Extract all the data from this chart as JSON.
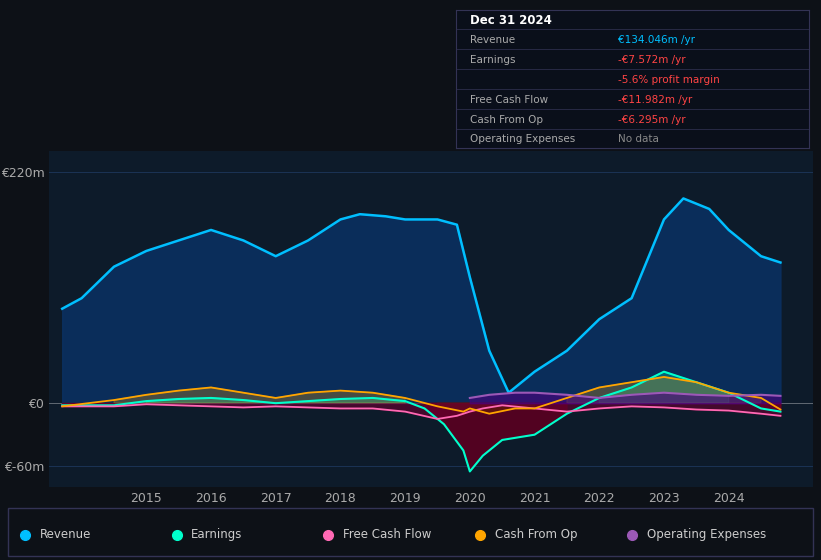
{
  "bg_color": "#0d1117",
  "chart_bg": "#0d1b2a",
  "grid_color": "#1e3a5f",
  "text_color": "#aaaaaa",
  "ylim": [
    -80,
    240
  ],
  "xlim_start": 2013.5,
  "xlim_end": 2025.3,
  "xticks": [
    2015,
    2016,
    2017,
    2018,
    2019,
    2020,
    2021,
    2022,
    2023,
    2024
  ],
  "revenue_color": "#00bfff",
  "revenue_fill_color": "#0a3060",
  "earnings_color": "#00ffcc",
  "fcf_color": "#ff69b4",
  "cop_color": "#ffa500",
  "opex_color": "#9b59b6",
  "revenue_data_x": [
    2013.7,
    2014.0,
    2014.5,
    2015.0,
    2015.5,
    2016.0,
    2016.5,
    2017.0,
    2017.5,
    2018.0,
    2018.3,
    2018.7,
    2019.0,
    2019.5,
    2019.8,
    2020.0,
    2020.3,
    2020.6,
    2021.0,
    2021.5,
    2022.0,
    2022.5,
    2023.0,
    2023.3,
    2023.7,
    2024.0,
    2024.5,
    2024.8
  ],
  "revenue_data_y": [
    90,
    100,
    130,
    145,
    155,
    165,
    155,
    140,
    155,
    175,
    180,
    178,
    175,
    175,
    170,
    120,
    50,
    10,
    30,
    50,
    80,
    100,
    175,
    195,
    185,
    165,
    140,
    134
  ],
  "earnings_data_x": [
    2013.7,
    2014.5,
    2015.0,
    2015.5,
    2016.0,
    2016.5,
    2017.0,
    2017.5,
    2018.0,
    2018.5,
    2019.0,
    2019.3,
    2019.6,
    2019.9,
    2020.0,
    2020.2,
    2020.5,
    2021.0,
    2021.5,
    2022.0,
    2022.5,
    2023.0,
    2023.5,
    2024.0,
    2024.5,
    2024.8
  ],
  "earnings_data_y": [
    -2,
    -2,
    2,
    4,
    5,
    3,
    0,
    2,
    4,
    5,
    2,
    -5,
    -20,
    -45,
    -65,
    -50,
    -35,
    -30,
    -10,
    5,
    15,
    30,
    20,
    10,
    -5,
    -8
  ],
  "fcf_data_x": [
    2013.7,
    2014.5,
    2015.0,
    2015.5,
    2016.0,
    2016.5,
    2017.0,
    2017.5,
    2018.0,
    2018.5,
    2019.0,
    2019.5,
    2019.8,
    2020.0,
    2020.2,
    2020.5,
    2021.0,
    2021.5,
    2022.0,
    2022.5,
    2023.0,
    2023.5,
    2024.0,
    2024.5,
    2024.8
  ],
  "fcf_data_y": [
    -3,
    -3,
    -1,
    -2,
    -3,
    -4,
    -3,
    -4,
    -5,
    -5,
    -8,
    -15,
    -12,
    -8,
    -5,
    -2,
    -5,
    -8,
    -5,
    -3,
    -4,
    -6,
    -7,
    -10,
    -12
  ],
  "cop_data_x": [
    2013.7,
    2014.5,
    2015.0,
    2015.5,
    2016.0,
    2016.5,
    2017.0,
    2017.5,
    2018.0,
    2018.5,
    2019.0,
    2019.5,
    2019.9,
    2020.0,
    2020.3,
    2020.7,
    2021.0,
    2021.5,
    2022.0,
    2022.5,
    2023.0,
    2023.5,
    2024.0,
    2024.5,
    2024.8
  ],
  "cop_data_y": [
    -3,
    3,
    8,
    12,
    15,
    10,
    5,
    10,
    12,
    10,
    5,
    -3,
    -8,
    -5,
    -10,
    -5,
    -5,
    5,
    15,
    20,
    25,
    20,
    10,
    5,
    -6
  ],
  "opex_data_x": [
    2020.0,
    2020.3,
    2020.7,
    2021.0,
    2021.5,
    2022.0,
    2022.5,
    2023.0,
    2023.5,
    2024.0,
    2024.5,
    2024.8
  ],
  "opex_data_y": [
    5,
    8,
    10,
    10,
    8,
    5,
    8,
    10,
    8,
    7,
    8,
    7
  ],
  "info_box": {
    "date": "Dec 31 2024",
    "revenue_label": "Revenue",
    "revenue_value": "€134.046m /yr",
    "revenue_color": "#00bfff",
    "earnings_label": "Earnings",
    "earnings_value": "-€7.572m /yr",
    "earnings_color": "#ff4444",
    "profit_margin": "-5.6% profit margin",
    "profit_margin_color": "#ff4444",
    "fcf_label": "Free Cash Flow",
    "fcf_value": "-€11.982m /yr",
    "fcf_color": "#ff4444",
    "cop_label": "Cash From Op",
    "cop_value": "-€6.295m /yr",
    "cop_color": "#ff4444",
    "opex_label": "Operating Expenses",
    "opex_value": "No data",
    "opex_value_color": "#888888"
  },
  "legend_items": [
    {
      "label": "Revenue",
      "color": "#00bfff"
    },
    {
      "label": "Earnings",
      "color": "#00ffcc"
    },
    {
      "label": "Free Cash Flow",
      "color": "#ff69b4"
    },
    {
      "label": "Cash From Op",
      "color": "#ffa500"
    },
    {
      "label": "Operating Expenses",
      "color": "#9b59b6"
    }
  ]
}
